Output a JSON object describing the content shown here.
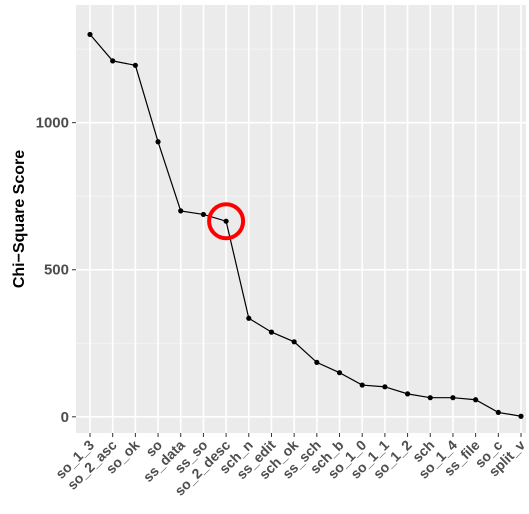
{
  "chart_data": {
    "type": "line",
    "title": "",
    "xlabel": "",
    "ylabel": "Chi−Square Score",
    "categories": [
      "so_1_3",
      "so_2_asc",
      "so_ok",
      "so",
      "ss_data",
      "ss_so",
      "so_2_desc",
      "sch_n",
      "ss_edit",
      "sch_ok",
      "ss_sch",
      "sch_b",
      "so_1_0",
      "so_1_1",
      "so_1_2",
      "sch",
      "so_1_4",
      "ss_file",
      "so_c",
      "split_v"
    ],
    "values": [
      1300,
      1210,
      1195,
      935,
      700,
      688,
      665,
      335,
      288,
      255,
      185,
      150,
      108,
      102,
      78,
      65,
      65,
      58,
      15,
      2
    ],
    "ylim": [
      -55,
      1400
    ],
    "yticks": [
      0,
      500,
      1000
    ],
    "ytick_labels": [
      "0",
      "500",
      "1000"
    ],
    "grid": true,
    "highlight": {
      "category": "so_2_desc",
      "color": "#ff0000",
      "shape": "circle"
    },
    "colors": {
      "line": "#000000",
      "panel": "#ebebeb",
      "gridline": "#ffffff"
    }
  }
}
